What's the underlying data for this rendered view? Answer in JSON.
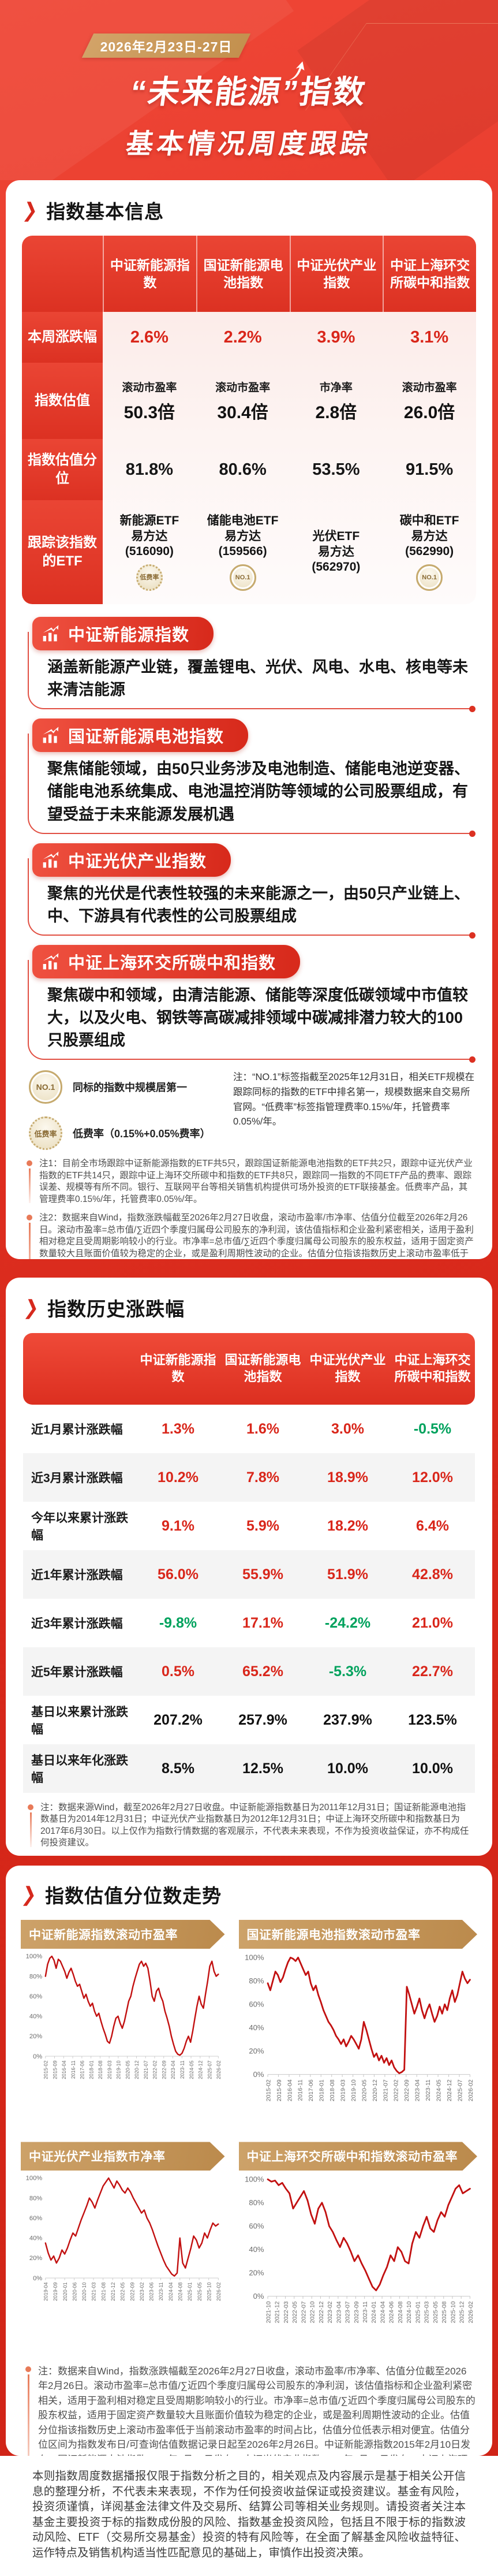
{
  "page": {
    "date_banner": "2026年2月23日-27日",
    "title_line1": "“未来能源”指数",
    "title_line2": "基本情况周度跟踪"
  },
  "basic": {
    "section_title": "指数基本信息",
    "col_headers": [
      "中证新能源指数",
      "国证新能源电池指数",
      "中证光伏产业指数",
      "中证上海环交所碳中和指数"
    ],
    "row_labels": [
      "本周涨跌幅",
      "指数估值",
      "指数估值分位",
      "跟踪该指数的ETF"
    ],
    "weekly_change": [
      "2.6%",
      "2.2%",
      "3.9%",
      "3.1%"
    ],
    "valuation": [
      {
        "metric": "滚动市盈率",
        "value": "50.3倍"
      },
      {
        "metric": "滚动市盈率",
        "value": "30.4倍"
      },
      {
        "metric": "市净率",
        "value": "2.8倍"
      },
      {
        "metric": "滚动市盈率",
        "value": "26.0倍"
      }
    ],
    "percentile": [
      "81.8%",
      "80.6%",
      "53.5%",
      "91.5%"
    ],
    "etfs": [
      {
        "lines": [
          "新能源ETF",
          "易方达",
          "(516090)"
        ],
        "badge": "低费率"
      },
      {
        "lines": [
          "储能电池ETF",
          "易方达",
          "(159566)"
        ],
        "badge": "NO.1"
      },
      {
        "lines": [
          "光伏ETF",
          "易方达",
          "(562970)"
        ],
        "badge": null
      },
      {
        "lines": [
          "碳中和ETF",
          "易方达",
          "(562990)"
        ],
        "badge": "NO.1"
      }
    ]
  },
  "index_sections": [
    {
      "title": "中证新能源指数",
      "desc": "涵盖新能源产业链，覆盖锂电、光伏、风电、水电、核电等未来清洁能源"
    },
    {
      "title": "国证新能源电池指数",
      "desc": "聚焦储能领域，由50只业务涉及电池制造、储能电池逆变器、储能电池系统集成、电池温控消防等领域的公司股票组成，有望受益于未来能源发展机遇"
    },
    {
      "title": "中证光伏产业指数",
      "desc": "聚焦的光伏是代表性较强的未来能源之一，由50只产业链上、中、下游具有代表性的公司股票组成"
    },
    {
      "title": "中证上海环交所碳中和指数",
      "desc": "聚焦碳中和领域，由清洁能源、储能等深度低碳领域中市值较大，以及火电、钢铁等高碳减排领域中碳减排潜力较大的100只股票组成"
    }
  ],
  "legend": {
    "no1_badge": "NO.1",
    "no1_text": "同标的指数中规模居第一",
    "lowfee_badge": "低费率",
    "lowfee_text": "低费率（0.15%+0.05%费率）",
    "note": "注：“NO.1”标签指截至2025年12月31日，相关ETF规模在跟踪同标的指数的ETF中排名第一，规模数据来自交易所官网。“低费率”标签指管理费率0.15%/年，托管费率0.05%/年。"
  },
  "notes": {
    "note1": "注1：目前全市场跟踪中证新能源指数的ETF共5只，跟踪国证新能源电池指数的ETF共2只，跟踪中证光伏产业指数的ETF共14只，跟踪中证上海环交所碳中和指数的ETF共8只，跟踪同一指数的不同ETF产品的费率、跟踪误差、规模等有所不同。银行、互联网平台等相关销售机构提供可场外投资的ETF联接基金。低费率产品，其管理费率0.15%/年，托管费率0.05%/年。",
    "note2": "注2：数据来自Wind，指数涨跌幅截至2026年2月27日收盘，滚动市盈率/市净率、估值分位截至2026年2月26日。滚动市盈率=总市值/∑近四个季度归属母公司股东的净利润，该估值指标和企业盈利紧密相关，适用于盈利相对稳定且受周期影响较小的行业。市净率=总市值/∑近四个季度归属母公司股东的股东权益，适用于固定资产数量较大且账面价值较为稳定的企业，或是盈利周期性波动的企业。估值分位指该指数历史上滚动市盈率低于当前滚动市盈率的时间占比，估值分位低表示相对便宜。估值分位区间为指数发布日/可查询估值数据记录日起至2026年2月26日。中证新能源指数2015年2月10日发布；国证新能源电池指数2015年2月16日发布；中证光伏产业指数2019年4月22日发布；中证上海环交所碳中和指数2021年10月21日发布。以上数据仅作为对指数涨跌幅、指数滚动市盈率及其所处分位的客观展示，不代表未来表现，不作为投资收益保证或者投资建议。"
  },
  "history": {
    "section_title": "指数历史涨跌幅",
    "col_headers": [
      "中证新能源指数",
      "国证新能源电池指数",
      "中证光伏产业指数",
      "中证上海环交所碳中和指数"
    ],
    "rows": [
      {
        "label": "近1月累计涨跌幅",
        "cells": [
          {
            "v": "1.3%",
            "c": "red"
          },
          {
            "v": "1.6%",
            "c": "red"
          },
          {
            "v": "3.0%",
            "c": "red"
          },
          {
            "v": "-0.5%",
            "c": "green"
          }
        ]
      },
      {
        "label": "近3月累计涨跌幅",
        "cells": [
          {
            "v": "10.2%",
            "c": "red"
          },
          {
            "v": "7.8%",
            "c": "red"
          },
          {
            "v": "18.9%",
            "c": "red"
          },
          {
            "v": "12.0%",
            "c": "red"
          }
        ]
      },
      {
        "label": "今年以来累计涨跌幅",
        "cells": [
          {
            "v": "9.1%",
            "c": "red"
          },
          {
            "v": "5.9%",
            "c": "red"
          },
          {
            "v": "18.2%",
            "c": "red"
          },
          {
            "v": "6.4%",
            "c": "red"
          }
        ]
      },
      {
        "label": "近1年累计涨跌幅",
        "cells": [
          {
            "v": "56.0%",
            "c": "red"
          },
          {
            "v": "55.9%",
            "c": "red"
          },
          {
            "v": "51.9%",
            "c": "red"
          },
          {
            "v": "42.8%",
            "c": "red"
          }
        ]
      },
      {
        "label": "近3年累计涨跌幅",
        "cells": [
          {
            "v": "-9.8%",
            "c": "green"
          },
          {
            "v": "17.1%",
            "c": "red"
          },
          {
            "v": "-24.2%",
            "c": "green"
          },
          {
            "v": "21.0%",
            "c": "red"
          }
        ]
      },
      {
        "label": "近5年累计涨跌幅",
        "cells": [
          {
            "v": "0.5%",
            "c": "red"
          },
          {
            "v": "65.2%",
            "c": "red"
          },
          {
            "v": "-5.3%",
            "c": "green"
          },
          {
            "v": "22.7%",
            "c": "red"
          }
        ]
      },
      {
        "label": "基日以来累计涨跌幅",
        "cells": [
          {
            "v": "207.2%",
            "c": "dark"
          },
          {
            "v": "257.9%",
            "c": "dark"
          },
          {
            "v": "237.9%",
            "c": "dark"
          },
          {
            "v": "123.5%",
            "c": "dark"
          }
        ]
      },
      {
        "label": "基日以来年化涨跌幅",
        "cells": [
          {
            "v": "8.5%",
            "c": "dark"
          },
          {
            "v": "12.5%",
            "c": "dark"
          },
          {
            "v": "10.0%",
            "c": "dark"
          },
          {
            "v": "10.0%",
            "c": "dark"
          }
        ]
      }
    ],
    "note": "注：数据来源Wind，截至2026年2月27日收盘。中证新能源指数基日为2011年12月31日；国证新能源电池指数基日为2014年12月31日；中证光伏产业指数基日为2012年12月31日；中证上海环交所碳中和指数基日为2017年6月30日。以上仅作为指数行情数据的客观展示，不代表未来表现，不作为投资收益保证，亦不构成任何投资建议。"
  },
  "valuation_trend": {
    "section_title": "指数估值分位数走势",
    "note": "注：数据来自Wind，指数涨跌幅截至2026年2月27日收盘，滚动市盈率/市净率、估值分位截至2026年2月26日。滚动市盈率=总市值/∑近四个季度归属母公司股东的净利润，该估值指标和企业盈利紧密相关，适用于盈利相对稳定且受周期影响较小的行业。市净率=总市值/∑近四个季度归属母公司股东的股东权益，适用于固定资产数量较大且账面价值较为稳定的企业，或是盈利周期性波动的企业。估值分位指该指数历史上滚动市盈率低于当前滚动市盈率的时间占比，估值分位低表示相对便宜。估值分位区间为指数发布日/可查询估值数据记录日起至2026年2月26日。中证新能源指数2015年2月10日发布；国证新能源电池指数2015年2月16日发布；中证光伏产业指数2019年4月22日发布；中证上海环交所碳中和指数2021年10月21日发布。以上数据仅作为对指数滚动市盈率分位数的客观展示，不代表未来表现，不作为投资收益保证或者投资建议。"
  },
  "chart_data": [
    {
      "type": "line",
      "title": "中证新能源指数滚动市盈率",
      "ylabel": "估值分位",
      "ylim": [
        0,
        100
      ],
      "yticks": [
        "100%",
        "80%",
        "60%",
        "40%",
        "20%",
        "0%"
      ],
      "x_labels": [
        "2015-02",
        "2015-09",
        "2016-04",
        "2016-11",
        "2017-06",
        "2018-01",
        "2018-08",
        "2019-03",
        "2019-10",
        "2020-05",
        "2020-12",
        "2021-07",
        "2022-02",
        "2022-09",
        "2023-04",
        "2023-11",
        "2024-05",
        "2024-12",
        "2025-07",
        "2026-02"
      ],
      "values": [
        80,
        92,
        98,
        100,
        96,
        88,
        97,
        95,
        90,
        85,
        78,
        84,
        88,
        82,
        75,
        70,
        72,
        65,
        58,
        62,
        55,
        50,
        53,
        45,
        40,
        43,
        35,
        28,
        22,
        15,
        13,
        20,
        30,
        38,
        40,
        33,
        28,
        35,
        45,
        55,
        60,
        70,
        78,
        85,
        92,
        95,
        90,
        93,
        88,
        75,
        60,
        55,
        65,
        68,
        60,
        55,
        45,
        38,
        30,
        20,
        12,
        5,
        2,
        1,
        3,
        8,
        15,
        20,
        14,
        25,
        38,
        50,
        60,
        52,
        48,
        62,
        75,
        90,
        95,
        85,
        80,
        82
      ]
    },
    {
      "type": "line",
      "title": "国证新能源电池指数滚动市盈率",
      "ylabel": "估值分位",
      "ylim": [
        0,
        100
      ],
      "yticks": [
        "100%",
        "80%",
        "60%",
        "40%",
        "20%",
        "0%"
      ],
      "x_labels": [
        "2015-02",
        "2015-09",
        "2016-04",
        "2016-11",
        "2017-06",
        "2018-01",
        "2018-08",
        "2019-03",
        "2019-10",
        "2020-05",
        "2020-12",
        "2021-07",
        "2022-02",
        "2022-09",
        "2023-04",
        "2023-11",
        "2024-05",
        "2024-12",
        "2025-07",
        "2026-02"
      ],
      "values": [
        78,
        72,
        80,
        88,
        85,
        79,
        83,
        90,
        96,
        100,
        99,
        97,
        100,
        95,
        90,
        85,
        88,
        78,
        72,
        76,
        68,
        62,
        55,
        50,
        45,
        42,
        38,
        33,
        30,
        26,
        30,
        24,
        28,
        33,
        30,
        26,
        22,
        30,
        45,
        38,
        30,
        22,
        15,
        18,
        12,
        16,
        10,
        14,
        8,
        12,
        6,
        3,
        1,
        2,
        4,
        75,
        68,
        60,
        52,
        58,
        65,
        55,
        48,
        55,
        60,
        52,
        45,
        50,
        58,
        52,
        60,
        55,
        65,
        72,
        62,
        68,
        78,
        88,
        82,
        78,
        81
      ]
    },
    {
      "type": "line",
      "title": "中证光伏产业指数市净率",
      "ylabel": "估值分位",
      "ylim": [
        0,
        100
      ],
      "yticks": [
        "100%",
        "80%",
        "60%",
        "40%",
        "20%",
        "0%"
      ],
      "x_labels": [
        "2019-04",
        "2019-09",
        "2020-01",
        "2020-06",
        "2020-10",
        "2021-03",
        "2021-08",
        "2021-12",
        "2022-05",
        "2022-09",
        "2023-02",
        "2023-06",
        "2023-11",
        "2024-04",
        "2024-08",
        "2025-01",
        "2025-05",
        "2025-10",
        "2026-02"
      ],
      "values": [
        35,
        25,
        18,
        22,
        15,
        20,
        28,
        24,
        30,
        38,
        45,
        42,
        50,
        58,
        65,
        72,
        80,
        76,
        70,
        78,
        85,
        92,
        96,
        100,
        95,
        90,
        97,
        93,
        88,
        85,
        90,
        86,
        80,
        75,
        70,
        65,
        68,
        60,
        55,
        48,
        40,
        32,
        25,
        18,
        12,
        8,
        4,
        2,
        5,
        40,
        15,
        10,
        20,
        30,
        42,
        38,
        30,
        35,
        45,
        40,
        48,
        55,
        52,
        54
      ]
    },
    {
      "type": "line",
      "title": "中证上海环交所碳中和指数滚动市盈率",
      "ylabel": "估值分位",
      "ylim": [
        0,
        100
      ],
      "yticks": [
        "100%",
        "80%",
        "60%",
        "40%",
        "20%",
        "0%"
      ],
      "x_labels": [
        "2021-10",
        "2021-12",
        "2022-03",
        "2022-05",
        "2022-07",
        "2022-10",
        "2022-12",
        "2023-02",
        "2023-04",
        "2023-07",
        "2023-09",
        "2023-11",
        "2024-01",
        "2024-04",
        "2024-06",
        "2024-08",
        "2024-10",
        "2025-01",
        "2025-03",
        "2025-05",
        "2025-08",
        "2025-10",
        "2025-12",
        "2026-02"
      ],
      "values": [
        100,
        98,
        99,
        95,
        97,
        92,
        88,
        75,
        80,
        85,
        90,
        82,
        70,
        62,
        75,
        80,
        72,
        60,
        55,
        48,
        42,
        50,
        45,
        38,
        30,
        35,
        28,
        22,
        15,
        8,
        5,
        10,
        18,
        25,
        35,
        30,
        42,
        38,
        30,
        28,
        45,
        55,
        50,
        60,
        68,
        58,
        55,
        65,
        72,
        68,
        78,
        85,
        92,
        95,
        88,
        90,
        92
      ]
    }
  ],
  "footer": {
    "disclaimer": "本则指数周度数据播报仅限于指数分析之目的，相关观点及内容展示是基于相关公开信息的整理分析，不代表未来表现，不作为任何投资收益保证或投资建议。基金有风险，投资须谨慎，详阅基金法律文件及交易所、结算公司等相关业务规则。请投资者关注本基金主要投资于标的指数成份股的风险、指数基金投资风险，包括且不限于标的指数波动风险、ETF（交易所交易基金）投资的特有风险等，在全面了解基金风险收益特征、运作特点及销售机构适当性匹配意见的基础上，审慎作出投资决策。"
  },
  "colors": {
    "accent_red": "#d6291d",
    "gold": "#c79a5e",
    "value_red": "#d9261a",
    "value_green": "#00a25d",
    "chart_line": "#c21010"
  }
}
